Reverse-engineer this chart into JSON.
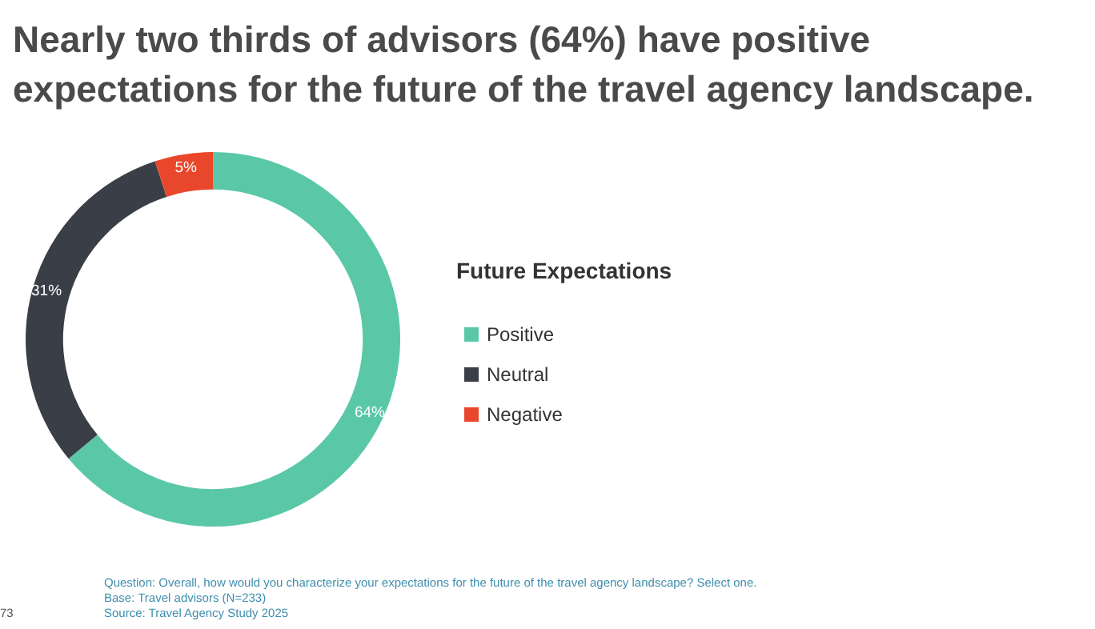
{
  "chart_data": {
    "type": "donut",
    "title": "Nearly two thirds of advisors (64%) have positive expectations for the future of the travel agency landscape.",
    "legend_title": "Future Expectations",
    "categories": [
      "Positive",
      "Neutral",
      "Negative"
    ],
    "values": [
      64,
      31,
      5
    ],
    "value_labels": [
      "64%",
      "31%",
      "5%"
    ],
    "colors": [
      "#5ac8a6",
      "#3a3f47",
      "#e9472b"
    ],
    "legend": "right",
    "annotations": [
      "Question: Overall, how would you characterize your expectations for the future of the travel agency landscape? Select one.",
      "Base: Travel advisors (N=233)",
      "Source: Travel Agency Study 2025",
      "73"
    ]
  }
}
